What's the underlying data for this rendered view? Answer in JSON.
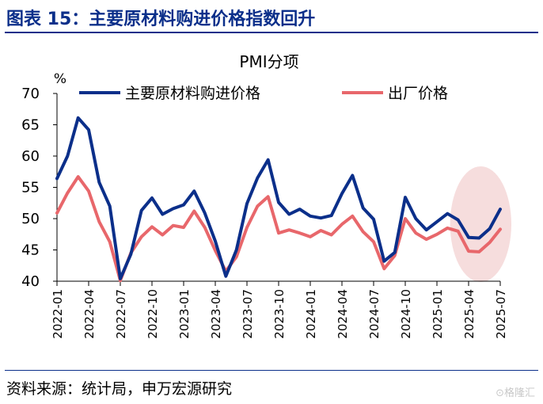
{
  "figure": {
    "title": "图表 15：主要原材料购进价格指数回升",
    "source": "资料来源：统计局，申万宏源研究",
    "watermark": "格隆汇"
  },
  "chart_data": {
    "type": "line",
    "title": "PMI分项",
    "y_unit": "%",
    "ylim": [
      40,
      70
    ],
    "yticks": [
      40,
      45,
      50,
      55,
      60,
      65,
      70
    ],
    "x": [
      "2022-01",
      "2022-02",
      "2022-03",
      "2022-04",
      "2022-05",
      "2022-06",
      "2022-07",
      "2022-08",
      "2022-09",
      "2022-10",
      "2022-11",
      "2022-12",
      "2023-01",
      "2023-02",
      "2023-03",
      "2023-04",
      "2023-05",
      "2023-06",
      "2023-07",
      "2023-08",
      "2023-09",
      "2023-10",
      "2023-11",
      "2023-12",
      "2024-01",
      "2024-02",
      "2024-03",
      "2024-04",
      "2024-05",
      "2024-06",
      "2024-07",
      "2024-08",
      "2024-09",
      "2024-10",
      "2024-11",
      "2024-12",
      "2025-01",
      "2025-02",
      "2025-03",
      "2025-04",
      "2025-05",
      "2025-06",
      "2025-07"
    ],
    "xtick_labels": [
      "2022-01",
      "2022-04",
      "2022-07",
      "2022-10",
      "2023-01",
      "2023-04",
      "2023-07",
      "2023-10",
      "2024-01",
      "2024-04",
      "2024-07",
      "2024-10",
      "2025-01",
      "2025-04",
      "2025-07"
    ],
    "grid": false,
    "legend_position": "top",
    "series": [
      {
        "name": "主要原材料购进价格",
        "color": "#0b2f8a",
        "values": [
          56.4,
          60.0,
          66.1,
          64.2,
          55.8,
          52.0,
          40.4,
          44.3,
          51.3,
          53.3,
          50.7,
          51.6,
          52.2,
          54.4,
          50.9,
          46.4,
          40.8,
          45.0,
          52.4,
          56.5,
          59.4,
          52.6,
          50.7,
          51.5,
          50.4,
          50.1,
          50.5,
          54.0,
          56.9,
          51.7,
          49.9,
          43.2,
          44.6,
          53.4,
          50.0,
          48.2,
          49.5,
          50.8,
          49.8,
          47.0,
          46.9,
          48.4,
          51.5
        ]
      },
      {
        "name": "出厂价格",
        "color": "#e8676b",
        "values": [
          50.9,
          54.1,
          56.7,
          54.4,
          49.5,
          46.3,
          40.1,
          44.5,
          47.1,
          48.7,
          47.4,
          48.9,
          48.6,
          51.2,
          48.6,
          44.9,
          41.6,
          43.9,
          48.6,
          52.0,
          53.5,
          47.7,
          48.2,
          47.7,
          47.1,
          48.1,
          47.4,
          49.1,
          50.4,
          47.9,
          46.3,
          42.0,
          44.1,
          50.0,
          47.7,
          46.7,
          47.5,
          48.5,
          48.0,
          44.8,
          44.7,
          46.2,
          48.3
        ]
      }
    ],
    "highlight": {
      "shape": "ellipse",
      "x_range": [
        "2025-03",
        "2025-07"
      ],
      "color": "#f4d7d7"
    }
  }
}
